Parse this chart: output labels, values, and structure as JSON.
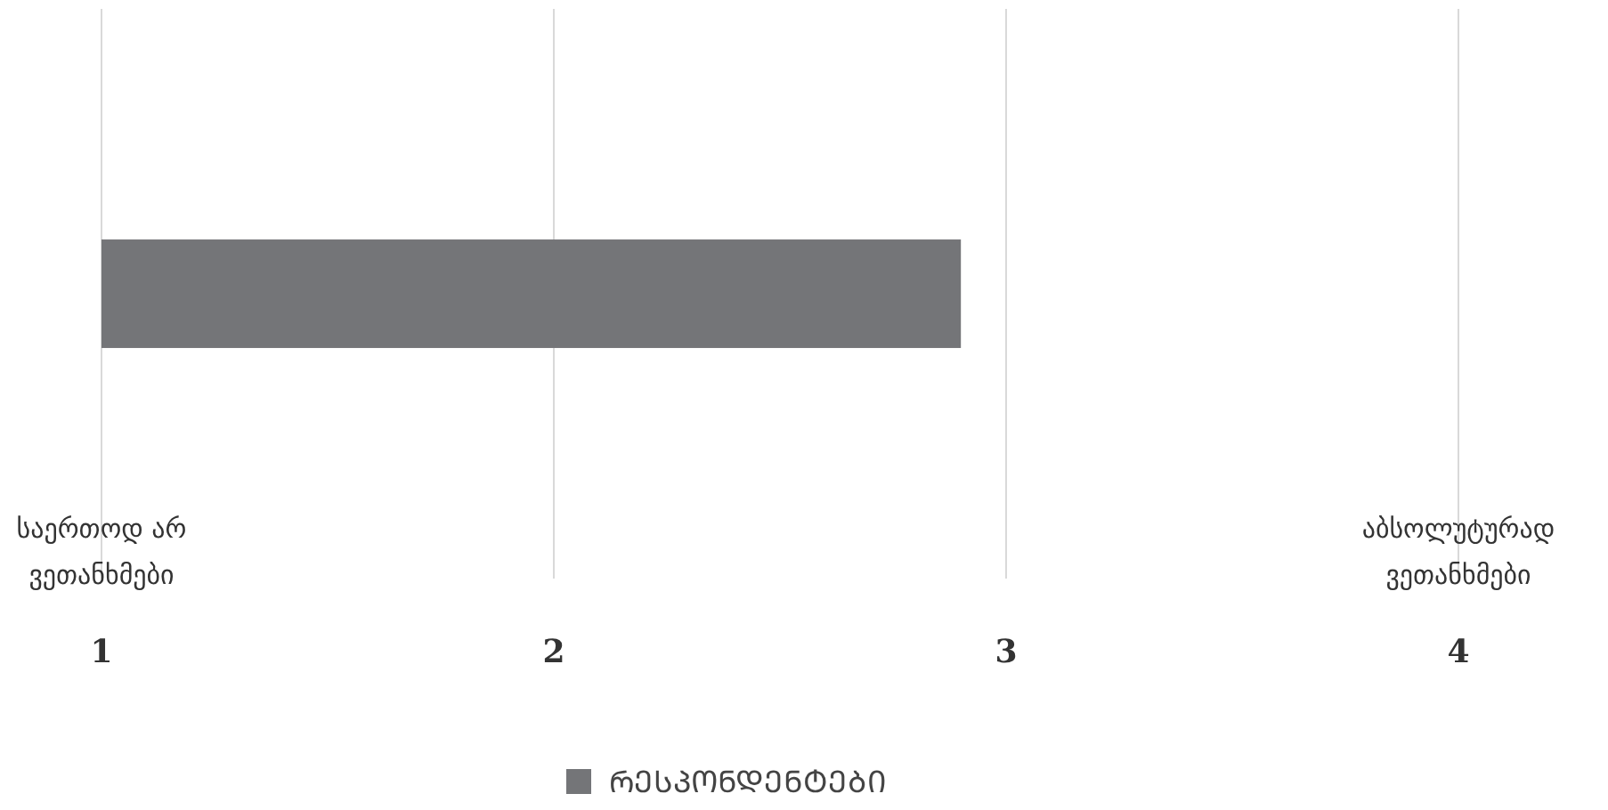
{
  "chart_data": {
    "type": "bar",
    "orientation": "horizontal",
    "categories": [
      null
    ],
    "series": [
      {
        "name": "ᲠᲔᲡᲞᲝᲜᲓᲔᲜᲢᲔᲑᲘ",
        "color": "#747578",
        "values": [
          2.9
        ]
      }
    ],
    "xlim": [
      1,
      4
    ],
    "xticks": [
      1,
      2,
      3,
      4
    ],
    "grid": "x",
    "legend": "bottom",
    "annotations": [
      "საერთოდ არ ვეთანხმები",
      "აბსოლუტურად ვეთანხმები"
    ]
  }
}
